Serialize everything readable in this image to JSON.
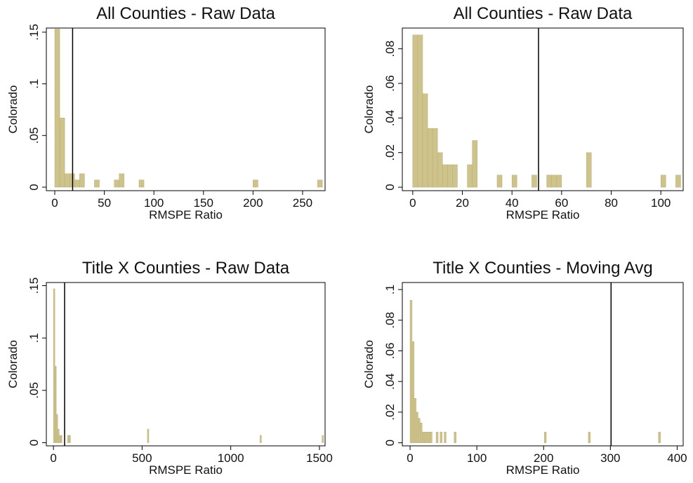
{
  "chart_data": [
    {
      "type": "histogram",
      "title": "All Counties - Raw Data",
      "xlabel": "RMSPE Ratio",
      "ylabel": "Colorado",
      "color": "#cfc38c",
      "vline": 18,
      "bins": [
        0,
        5,
        10,
        15,
        20,
        25,
        30,
        35,
        40,
        45,
        50,
        55,
        60,
        65,
        70,
        75,
        80,
        85,
        90,
        95,
        100,
        105,
        110,
        115,
        120,
        125,
        130,
        135,
        140,
        145,
        150,
        155,
        160,
        165,
        170,
        175,
        180,
        185,
        190,
        195,
        200,
        205,
        210,
        215,
        220,
        225,
        230,
        235,
        240,
        245,
        250,
        255,
        260,
        265,
        270
      ],
      "values": [
        0.153,
        0.067,
        0.013,
        0.013,
        0.007,
        0.013,
        0,
        0,
        0.007,
        0,
        0,
        0,
        0.007,
        0.013,
        0,
        0,
        0,
        0.007,
        0,
        0,
        0,
        0,
        0,
        0,
        0,
        0,
        0,
        0,
        0,
        0,
        0,
        0,
        0,
        0,
        0,
        0,
        0,
        0,
        0,
        0,
        0.007,
        0,
        0,
        0,
        0,
        0,
        0,
        0,
        0,
        0,
        0,
        0,
        0,
        0.007
      ],
      "xlim": [
        -8.5,
        272.7
      ],
      "ylim": [
        -0.0034,
        0.154
      ],
      "xticks": [
        0,
        50,
        100,
        150,
        200,
        250
      ],
      "yticks": [
        0,
        {
          "value": 0.05,
          "label": ".05"
        },
        {
          "value": 0.1,
          "label": ".1"
        },
        {
          "value": 0.15,
          "label": ".15"
        }
      ]
    },
    {
      "type": "histogram",
      "title": "All Counties - Raw Data",
      "xlabel": "RMSPE Ratio",
      "ylabel": "Colorado",
      "color": "#cfc38c",
      "vline": 50.7,
      "bins": [
        0,
        2,
        4,
        6,
        8,
        10,
        12,
        14,
        16,
        18,
        20,
        22,
        24,
        26,
        28,
        30,
        32,
        34,
        36,
        38,
        40,
        42,
        44,
        46,
        48,
        50,
        52,
        54,
        56,
        58,
        60,
        62,
        64,
        66,
        68,
        70,
        72,
        74,
        76,
        78,
        80,
        82,
        84,
        86,
        88,
        90,
        92,
        94,
        96,
        98,
        100,
        102,
        104,
        106,
        108
      ],
      "values": [
        0.088,
        0.088,
        0.054,
        0.034,
        0.034,
        0.02,
        0.013,
        0.013,
        0.013,
        0,
        0,
        0.013,
        0.027,
        0,
        0,
        0,
        0,
        0.007,
        0,
        0,
        0.007,
        0,
        0,
        0,
        0.007,
        0,
        0,
        0.007,
        0.007,
        0.007,
        0,
        0,
        0,
        0,
        0,
        0.02,
        0,
        0,
        0,
        0,
        0,
        0,
        0,
        0,
        0,
        0,
        0,
        0,
        0,
        0,
        0.007,
        0,
        0,
        0.007
      ],
      "xlim": [
        -4.2,
        109
      ],
      "ylim": [
        -0.002,
        0.092
      ],
      "xticks": [
        0,
        20,
        40,
        60,
        80,
        100
      ],
      "yticks": [
        0,
        {
          "value": 0.02,
          "label": ".02"
        },
        {
          "value": 0.04,
          "label": ".04"
        },
        {
          "value": 0.06,
          "label": ".06"
        },
        {
          "value": 0.08,
          "label": ".08"
        }
      ]
    },
    {
      "type": "histogram",
      "title": "Title X Counties - Raw Data",
      "xlabel": "RMSPE Ratio",
      "ylabel": "Colorado",
      "color": "#cfc38c",
      "vline": 63,
      "bins": [
        0,
        8,
        16,
        24,
        32,
        40,
        48,
        80,
        88,
        96,
        530,
        538,
        1165,
        1173,
        1515,
        1523
      ],
      "values": [
        0.147,
        0.073,
        0.027,
        0.013,
        0.007,
        0.007,
        0,
        0.007,
        0.007,
        0,
        0.013,
        0,
        0.007,
        0,
        0.007
      ],
      "xlim": [
        -40,
        1532
      ],
      "ylim": [
        -0.003,
        0.153
      ],
      "xticks": [
        0,
        500,
        1000,
        1500
      ],
      "yticks": [
        0,
        {
          "value": 0.05,
          "label": ".05"
        },
        {
          "value": 0.1,
          "label": ".1"
        },
        {
          "value": 0.15,
          "label": ".15"
        }
      ]
    },
    {
      "type": "histogram",
      "title": "Title X Counties - Moving Avg",
      "xlabel": "RMSPE Ratio",
      "ylabel": "Colorado",
      "color": "#cfc38c",
      "vline": 301,
      "bins": [
        0,
        3,
        6,
        9,
        12,
        15,
        18,
        21,
        24,
        27,
        30,
        33,
        36,
        39,
        42,
        45,
        48,
        51,
        54,
        66,
        69,
        201,
        204,
        267,
        270,
        372,
        375
      ],
      "values": [
        0.093,
        0.066,
        0.029,
        0.02,
        0.016,
        0.013,
        0.007,
        0.007,
        0.007,
        0.007,
        0.007,
        0,
        0,
        0.007,
        0,
        0.007,
        0,
        0.007,
        0,
        0.007,
        0,
        0.007,
        0,
        0.007,
        0,
        0.007
      ],
      "xlim": [
        -11.6,
        409
      ],
      "ylim": [
        -0.002,
        0.1046
      ],
      "xticks": [
        0,
        100,
        200,
        300,
        400
      ],
      "yticks": [
        0,
        {
          "value": 0.02,
          "label": ".02"
        },
        {
          "value": 0.04,
          "label": ".04"
        },
        {
          "value": 0.06,
          "label": ".06"
        },
        {
          "value": 0.08,
          "label": ".08"
        },
        {
          "value": 0.1,
          "label": ".1"
        }
      ]
    }
  ]
}
